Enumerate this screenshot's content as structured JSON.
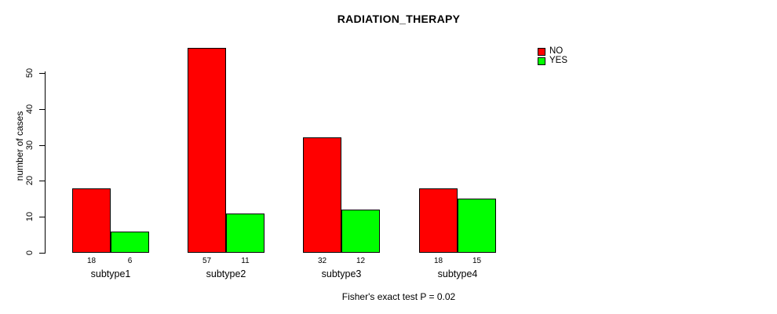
{
  "chart_data": {
    "type": "bar",
    "title": "RADIATION_THERAPY",
    "categories": [
      "subtype1",
      "subtype2",
      "subtype3",
      "subtype4"
    ],
    "series": [
      {
        "name": "NO",
        "color": "#ff0000",
        "values": [
          18,
          57,
          32,
          18
        ]
      },
      {
        "name": "YES",
        "color": "#00ff00",
        "values": [
          6,
          11,
          12,
          15
        ]
      }
    ],
    "xlabel": "",
    "ylabel": "number of cases",
    "ylim": [
      0,
      57
    ],
    "yticks": [
      0,
      10,
      20,
      30,
      40,
      50
    ],
    "grid": false,
    "legend_position": "top-right",
    "bar_value_labels": true,
    "annotation": "Fisher's exact test P = 0.02"
  },
  "legend": {
    "no_label": "NO",
    "yes_label": "YES"
  },
  "colors": {
    "no": "#ff0000",
    "yes": "#00ff00",
    "axis": "#000000",
    "background": "#ffffff"
  }
}
